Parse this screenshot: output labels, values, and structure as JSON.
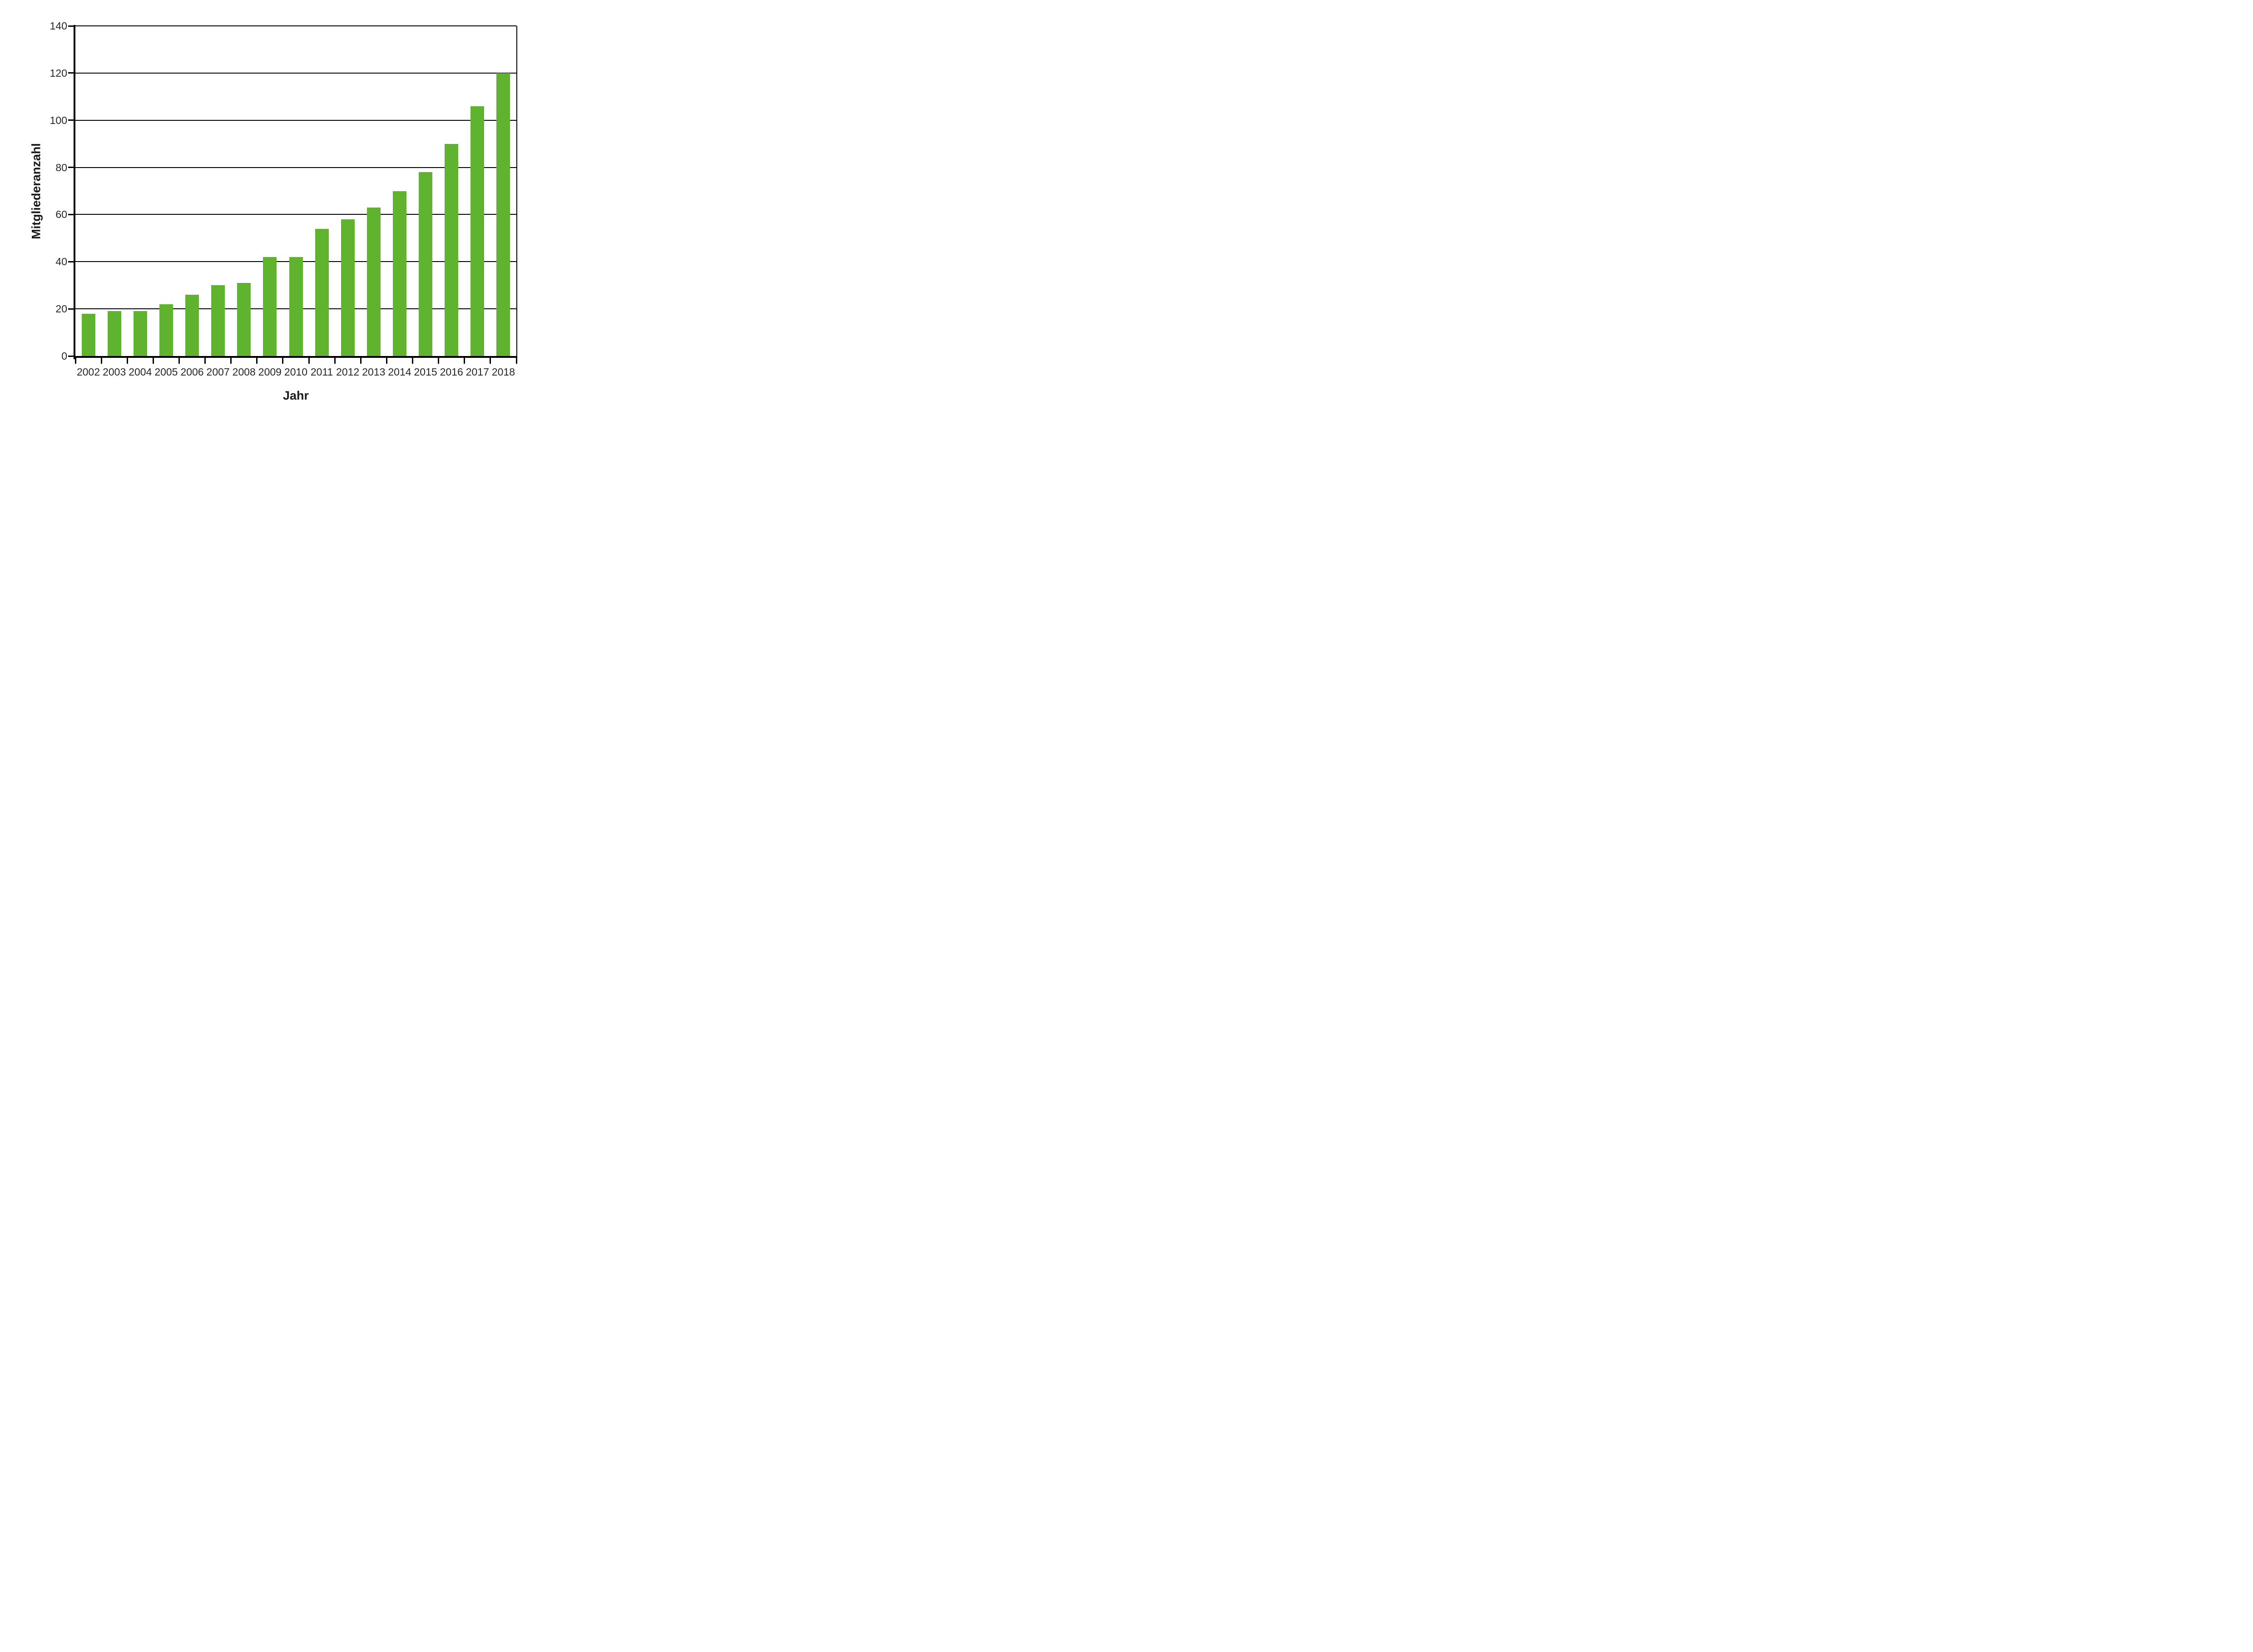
{
  "chart_data": {
    "type": "bar",
    "title": "",
    "categories": [
      "2002",
      "2003",
      "2004",
      "2005",
      "2006",
      "2007",
      "2008",
      "2009",
      "2010",
      "2011",
      "2012",
      "2013",
      "2014",
      "2015",
      "2016",
      "2017",
      "2018"
    ],
    "values": [
      18,
      19,
      19,
      22,
      26,
      30,
      31,
      42,
      42,
      54,
      58,
      63,
      70,
      78,
      90,
      106,
      120
    ],
    "xlabel": "Jahr",
    "ylabel": "Mitgliederanzahl",
    "ylim": [
      0,
      140
    ],
    "yticks": [
      0,
      20,
      40,
      60,
      80,
      100,
      120,
      140
    ],
    "grid": true,
    "legend_position": "none",
    "bar_color": "#5fb32e",
    "axis_color": "#000000",
    "tick_label_color": "#262626",
    "background_color": "#ffffff"
  }
}
